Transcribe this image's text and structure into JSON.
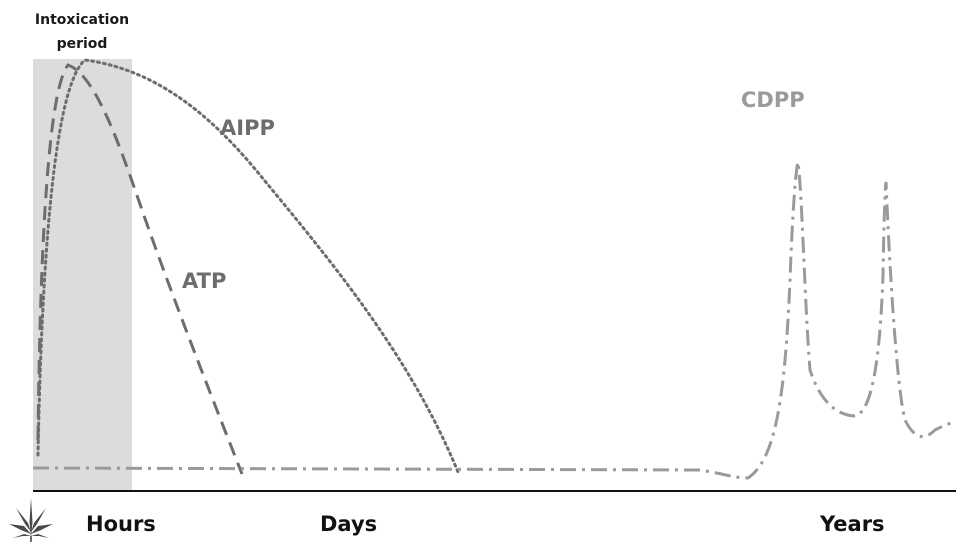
{
  "intoxication_period": {
    "line1": "Intoxication",
    "line2": "period",
    "fill_color": "#dcdcdc"
  },
  "curves": {
    "atp": {
      "label": "ATP",
      "color": "#6d6d6d",
      "style": "dashed"
    },
    "aipp": {
      "label": "AIPP",
      "color": "#6d6d6d",
      "style": "dotted"
    },
    "cdpp": {
      "label": "CDPP",
      "color": "#9a9a9a",
      "style": "dash-dot"
    }
  },
  "axis": {
    "labels": [
      "Hours",
      "Days",
      "Years"
    ]
  },
  "icons": {
    "corner": "cannabis-leaf-icon"
  }
}
